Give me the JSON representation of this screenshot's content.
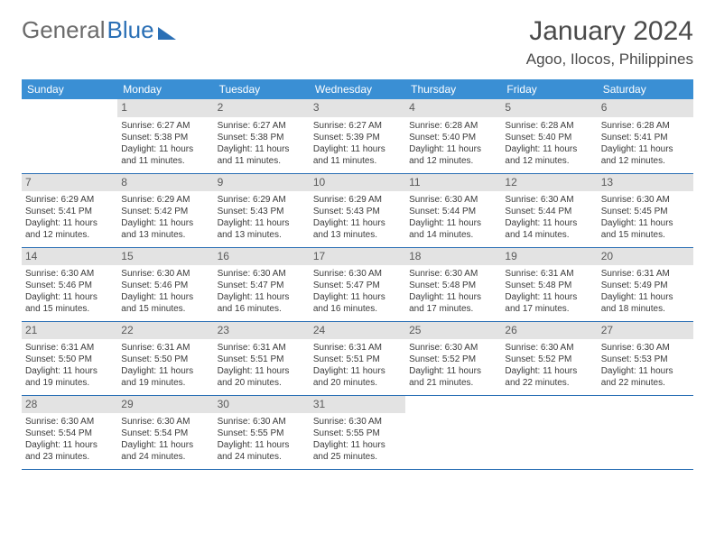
{
  "brand": {
    "part1": "General",
    "part2": "Blue"
  },
  "title": "January 2024",
  "location": "Agoo, Ilocos, Philippines",
  "colors": {
    "header_bg": "#3a8fd4",
    "header_fg": "#ffffff",
    "daynum_bg": "#e3e3e3",
    "rule": "#2a6fb5",
    "text": "#3a3a3a"
  },
  "weekdays": [
    "Sunday",
    "Monday",
    "Tuesday",
    "Wednesday",
    "Thursday",
    "Friday",
    "Saturday"
  ],
  "weeks": [
    [
      {
        "n": "",
        "sr": "",
        "ss": "",
        "dl": ""
      },
      {
        "n": "1",
        "sr": "Sunrise: 6:27 AM",
        "ss": "Sunset: 5:38 PM",
        "dl": "Daylight: 11 hours and 11 minutes."
      },
      {
        "n": "2",
        "sr": "Sunrise: 6:27 AM",
        "ss": "Sunset: 5:38 PM",
        "dl": "Daylight: 11 hours and 11 minutes."
      },
      {
        "n": "3",
        "sr": "Sunrise: 6:27 AM",
        "ss": "Sunset: 5:39 PM",
        "dl": "Daylight: 11 hours and 11 minutes."
      },
      {
        "n": "4",
        "sr": "Sunrise: 6:28 AM",
        "ss": "Sunset: 5:40 PM",
        "dl": "Daylight: 11 hours and 12 minutes."
      },
      {
        "n": "5",
        "sr": "Sunrise: 6:28 AM",
        "ss": "Sunset: 5:40 PM",
        "dl": "Daylight: 11 hours and 12 minutes."
      },
      {
        "n": "6",
        "sr": "Sunrise: 6:28 AM",
        "ss": "Sunset: 5:41 PM",
        "dl": "Daylight: 11 hours and 12 minutes."
      }
    ],
    [
      {
        "n": "7",
        "sr": "Sunrise: 6:29 AM",
        "ss": "Sunset: 5:41 PM",
        "dl": "Daylight: 11 hours and 12 minutes."
      },
      {
        "n": "8",
        "sr": "Sunrise: 6:29 AM",
        "ss": "Sunset: 5:42 PM",
        "dl": "Daylight: 11 hours and 13 minutes."
      },
      {
        "n": "9",
        "sr": "Sunrise: 6:29 AM",
        "ss": "Sunset: 5:43 PM",
        "dl": "Daylight: 11 hours and 13 minutes."
      },
      {
        "n": "10",
        "sr": "Sunrise: 6:29 AM",
        "ss": "Sunset: 5:43 PM",
        "dl": "Daylight: 11 hours and 13 minutes."
      },
      {
        "n": "11",
        "sr": "Sunrise: 6:30 AM",
        "ss": "Sunset: 5:44 PM",
        "dl": "Daylight: 11 hours and 14 minutes."
      },
      {
        "n": "12",
        "sr": "Sunrise: 6:30 AM",
        "ss": "Sunset: 5:44 PM",
        "dl": "Daylight: 11 hours and 14 minutes."
      },
      {
        "n": "13",
        "sr": "Sunrise: 6:30 AM",
        "ss": "Sunset: 5:45 PM",
        "dl": "Daylight: 11 hours and 15 minutes."
      }
    ],
    [
      {
        "n": "14",
        "sr": "Sunrise: 6:30 AM",
        "ss": "Sunset: 5:46 PM",
        "dl": "Daylight: 11 hours and 15 minutes."
      },
      {
        "n": "15",
        "sr": "Sunrise: 6:30 AM",
        "ss": "Sunset: 5:46 PM",
        "dl": "Daylight: 11 hours and 15 minutes."
      },
      {
        "n": "16",
        "sr": "Sunrise: 6:30 AM",
        "ss": "Sunset: 5:47 PM",
        "dl": "Daylight: 11 hours and 16 minutes."
      },
      {
        "n": "17",
        "sr": "Sunrise: 6:30 AM",
        "ss": "Sunset: 5:47 PM",
        "dl": "Daylight: 11 hours and 16 minutes."
      },
      {
        "n": "18",
        "sr": "Sunrise: 6:30 AM",
        "ss": "Sunset: 5:48 PM",
        "dl": "Daylight: 11 hours and 17 minutes."
      },
      {
        "n": "19",
        "sr": "Sunrise: 6:31 AM",
        "ss": "Sunset: 5:48 PM",
        "dl": "Daylight: 11 hours and 17 minutes."
      },
      {
        "n": "20",
        "sr": "Sunrise: 6:31 AM",
        "ss": "Sunset: 5:49 PM",
        "dl": "Daylight: 11 hours and 18 minutes."
      }
    ],
    [
      {
        "n": "21",
        "sr": "Sunrise: 6:31 AM",
        "ss": "Sunset: 5:50 PM",
        "dl": "Daylight: 11 hours and 19 minutes."
      },
      {
        "n": "22",
        "sr": "Sunrise: 6:31 AM",
        "ss": "Sunset: 5:50 PM",
        "dl": "Daylight: 11 hours and 19 minutes."
      },
      {
        "n": "23",
        "sr": "Sunrise: 6:31 AM",
        "ss": "Sunset: 5:51 PM",
        "dl": "Daylight: 11 hours and 20 minutes."
      },
      {
        "n": "24",
        "sr": "Sunrise: 6:31 AM",
        "ss": "Sunset: 5:51 PM",
        "dl": "Daylight: 11 hours and 20 minutes."
      },
      {
        "n": "25",
        "sr": "Sunrise: 6:30 AM",
        "ss": "Sunset: 5:52 PM",
        "dl": "Daylight: 11 hours and 21 minutes."
      },
      {
        "n": "26",
        "sr": "Sunrise: 6:30 AM",
        "ss": "Sunset: 5:52 PM",
        "dl": "Daylight: 11 hours and 22 minutes."
      },
      {
        "n": "27",
        "sr": "Sunrise: 6:30 AM",
        "ss": "Sunset: 5:53 PM",
        "dl": "Daylight: 11 hours and 22 minutes."
      }
    ],
    [
      {
        "n": "28",
        "sr": "Sunrise: 6:30 AM",
        "ss": "Sunset: 5:54 PM",
        "dl": "Daylight: 11 hours and 23 minutes."
      },
      {
        "n": "29",
        "sr": "Sunrise: 6:30 AM",
        "ss": "Sunset: 5:54 PM",
        "dl": "Daylight: 11 hours and 24 minutes."
      },
      {
        "n": "30",
        "sr": "Sunrise: 6:30 AM",
        "ss": "Sunset: 5:55 PM",
        "dl": "Daylight: 11 hours and 24 minutes."
      },
      {
        "n": "31",
        "sr": "Sunrise: 6:30 AM",
        "ss": "Sunset: 5:55 PM",
        "dl": "Daylight: 11 hours and 25 minutes."
      },
      {
        "n": "",
        "sr": "",
        "ss": "",
        "dl": ""
      },
      {
        "n": "",
        "sr": "",
        "ss": "",
        "dl": ""
      },
      {
        "n": "",
        "sr": "",
        "ss": "",
        "dl": ""
      }
    ]
  ]
}
